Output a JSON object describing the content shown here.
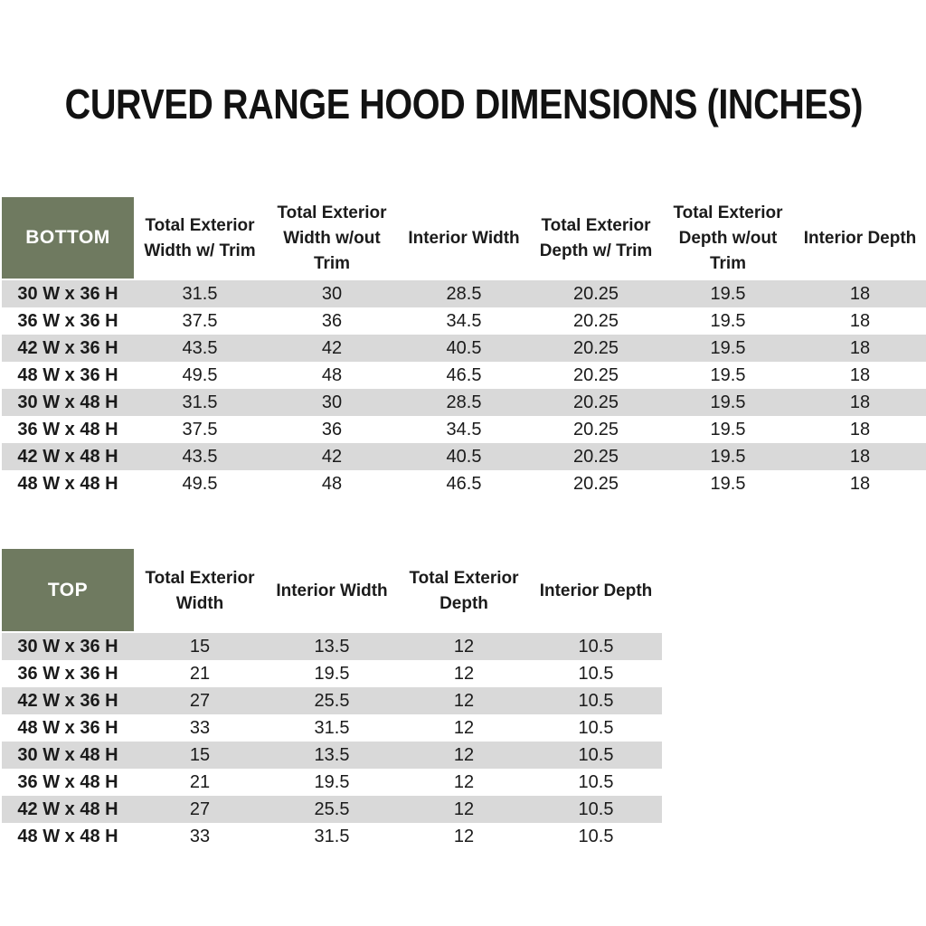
{
  "title": "CURVED RANGE HOOD DIMENSIONS (INCHES)",
  "colors": {
    "header_green": "#6F7A60",
    "row_alt_gray": "#D9D9D9",
    "text": "#1b1b1b",
    "corner_text": "#FFFFFF"
  },
  "tables": [
    {
      "name": "BOTTOM",
      "columns": [
        "Total Exterior Width w/ Trim",
        "Total Exterior Width w/out Trim",
        "Interior Width",
        "Total Exterior Depth w/ Trim",
        "Total Exterior Depth w/out Trim",
        "Interior Depth"
      ],
      "rows": [
        {
          "label": "30 W x 36 H",
          "values": [
            "31.5",
            "30",
            "28.5",
            "20.25",
            "19.5",
            "18"
          ]
        },
        {
          "label": "36 W x 36 H",
          "values": [
            "37.5",
            "36",
            "34.5",
            "20.25",
            "19.5",
            "18"
          ]
        },
        {
          "label": "42 W x 36 H",
          "values": [
            "43.5",
            "42",
            "40.5",
            "20.25",
            "19.5",
            "18"
          ]
        },
        {
          "label": "48 W x 36 H",
          "values": [
            "49.5",
            "48",
            "46.5",
            "20.25",
            "19.5",
            "18"
          ]
        },
        {
          "label": "30 W x 48 H",
          "values": [
            "31.5",
            "30",
            "28.5",
            "20.25",
            "19.5",
            "18"
          ]
        },
        {
          "label": "36 W x 48 H",
          "values": [
            "37.5",
            "36",
            "34.5",
            "20.25",
            "19.5",
            "18"
          ]
        },
        {
          "label": "42 W x 48 H",
          "values": [
            "43.5",
            "42",
            "40.5",
            "20.25",
            "19.5",
            "18"
          ]
        },
        {
          "label": "48 W x 48 H",
          "values": [
            "49.5",
            "48",
            "46.5",
            "20.25",
            "19.5",
            "18"
          ]
        }
      ]
    },
    {
      "name": "TOP",
      "columns": [
        "Total Exterior Width",
        "Interior Width",
        "Total Exterior Depth",
        "Interior Depth"
      ],
      "rows": [
        {
          "label": "30 W x 36 H",
          "values": [
            "15",
            "13.5",
            "12",
            "10.5"
          ]
        },
        {
          "label": "36 W x 36 H",
          "values": [
            "21",
            "19.5",
            "12",
            "10.5"
          ]
        },
        {
          "label": "42 W x 36 H",
          "values": [
            "27",
            "25.5",
            "12",
            "10.5"
          ]
        },
        {
          "label": "48 W x 36 H",
          "values": [
            "33",
            "31.5",
            "12",
            "10.5"
          ]
        },
        {
          "label": "30 W x 48 H",
          "values": [
            "15",
            "13.5",
            "12",
            "10.5"
          ]
        },
        {
          "label": "36 W x 48 H",
          "values": [
            "21",
            "19.5",
            "12",
            "10.5"
          ]
        },
        {
          "label": "42 W x 48 H",
          "values": [
            "27",
            "25.5",
            "12",
            "10.5"
          ]
        },
        {
          "label": "48 W x 48 H",
          "values": [
            "33",
            "31.5",
            "12",
            "10.5"
          ]
        }
      ]
    }
  ]
}
